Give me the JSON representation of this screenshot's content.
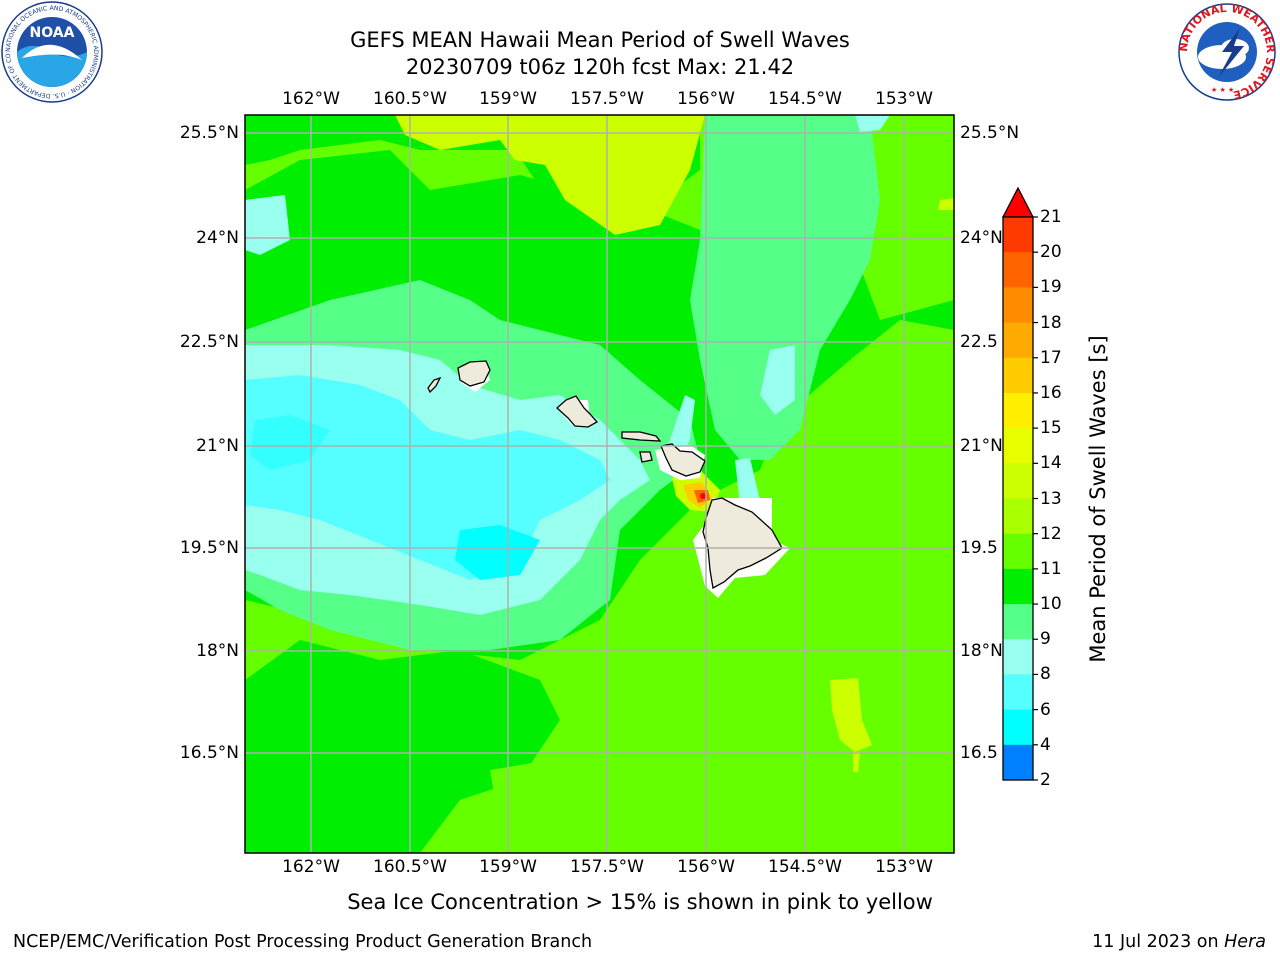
{
  "title": {
    "line1": "GEFS MEAN Hawaii Mean Period of Swell Waves",
    "line2": "20230709 t06z 120h fcst   Max: 21.42"
  },
  "map": {
    "lon_labels": [
      "162°W",
      "160.5°W",
      "159°W",
      "157.5°W",
      "156°W",
      "154.5°W",
      "153°W"
    ],
    "lat_labels": [
      "25.5°N",
      "24°N",
      "22.5°N",
      "21°N",
      "19.5°N",
      "18°N",
      "16.5°N"
    ],
    "right_lat_labels": [
      "25.5°N",
      "24°N",
      "22.5",
      "21°N",
      "19.5",
      "18°N",
      "16.5"
    ],
    "land_color": "#eeebdc",
    "grid_color": "#b0b0b0",
    "islands": [
      "Niihau",
      "Kauai",
      "Oahu",
      "Molokai",
      "Lanai",
      "Maui",
      "Hawaii"
    ]
  },
  "colorbar": {
    "label": "Mean Period of Swell Waves [s]",
    "ticks": [
      "21",
      "20",
      "19",
      "18",
      "17",
      "16",
      "15",
      "14",
      "13",
      "12",
      "11",
      "10",
      "9",
      "8",
      "6",
      "4",
      "2"
    ],
    "colors_top_to_bottom": [
      "#ff0000",
      "#ff3a00",
      "#ff6400",
      "#ff8c00",
      "#ffaa00",
      "#ffcc00",
      "#ffee00",
      "#e8ff00",
      "#ccff00",
      "#aaff00",
      "#66ff00",
      "#00ee00",
      "#55ff88",
      "#99ffee",
      "#55ffff",
      "#00ffff",
      "#0080ff",
      "#0000ff"
    ],
    "extend_color": "#ff0000"
  },
  "logos": {
    "noaa_text": "NOAA",
    "noaa_ring_text": "NATIONAL OCEANIC AND ATMOSPHERIC ADMINISTRATION · U.S. DEPARTMENT OF COMMERCE",
    "nws_ring_text": "NATIONAL WEATHER SERVICE"
  },
  "notes": {
    "ice": "Sea Ice Concentration > 15% is shown in pink to yellow"
  },
  "footer": {
    "left": "NCEP/EMC/Verification Post Processing Product Generation Branch",
    "right_date": "11 Jul 2023 on",
    "right_machine": "Hera"
  }
}
